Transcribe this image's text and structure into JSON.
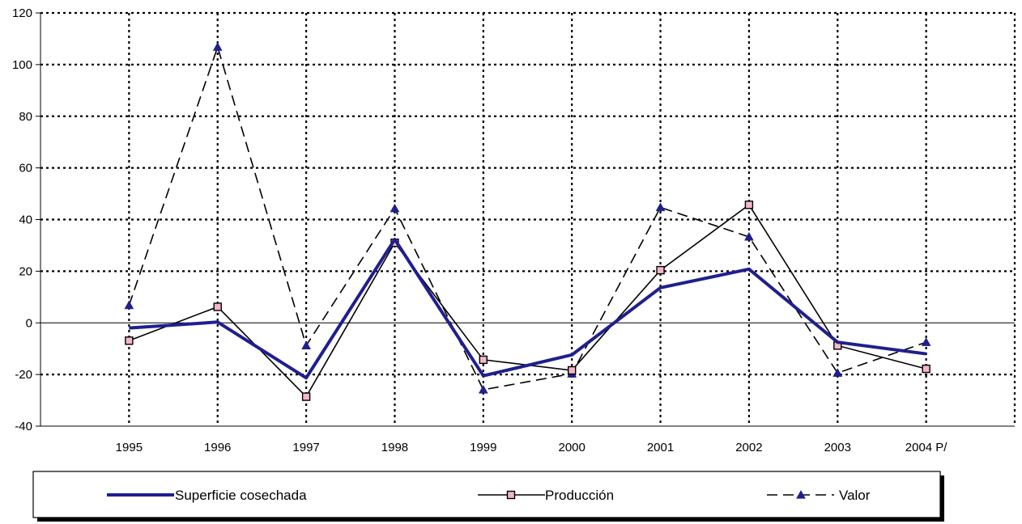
{
  "chart_data": {
    "type": "line",
    "categories": [
      "1995",
      "1996",
      "1997",
      "1998",
      "1999",
      "2000",
      "2001",
      "2002",
      "2003",
      "2004 P/"
    ],
    "ylim": [
      -40,
      120
    ],
    "yticks": [
      "-40",
      "-20",
      "0",
      "20",
      "40",
      "60",
      "80",
      "100",
      "120"
    ],
    "grid": "on",
    "legend_position": "bottom",
    "series": [
      {
        "name": "Superficie cosechada",
        "color": "#1f1f8f",
        "style": "thick-solid",
        "values": [
          -2,
          0.3,
          -21.3,
          32.3,
          -20.5,
          -12.4,
          13.6,
          20.8,
          -7.5,
          -12
        ]
      },
      {
        "name": "Producción",
        "color": "#000000",
        "marker_fill": "#f4b6c8",
        "style": "thin-solid-square",
        "values": [
          -6.9,
          6.2,
          -28.6,
          31,
          -14.3,
          -18.4,
          20.4,
          45.7,
          -8.8,
          -17.8
        ]
      },
      {
        "name": "Valor",
        "color": "#000000",
        "marker_fill": "#1f1f8f",
        "style": "dashed-triangle",
        "values": [
          6.8,
          106.8,
          -8.8,
          44.3,
          -25.9,
          -19.7,
          44.7,
          33.3,
          -19.4,
          -7.5
        ]
      }
    ]
  }
}
